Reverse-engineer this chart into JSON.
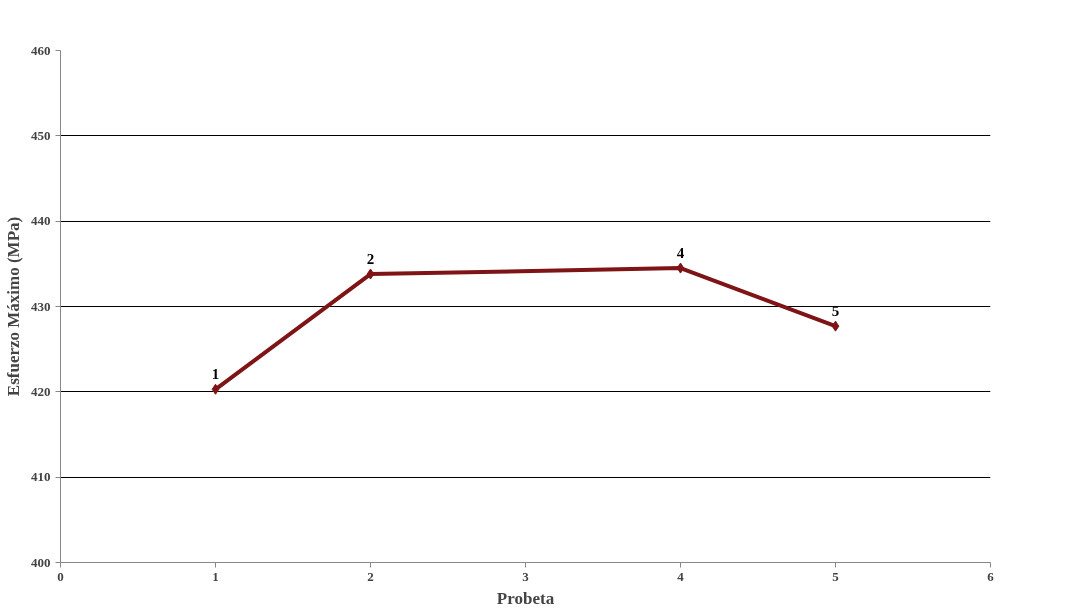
{
  "chart_data": {
    "type": "line",
    "xlabel": "Probeta",
    "ylabel": "Esfuerzo Máximo (MPa)",
    "x": [
      1,
      2,
      4,
      5
    ],
    "series": [
      {
        "color": "#7f1416",
        "values": [
          420.3,
          433.8,
          434.5,
          427.7
        ]
      }
    ],
    "xlim": [
      0,
      6
    ],
    "xticks": [
      0,
      1,
      2,
      3,
      4,
      5,
      6
    ],
    "ylim": [
      400,
      460
    ],
    "yticks": [
      400,
      410,
      420,
      430,
      440,
      450,
      460
    ],
    "grid": "y",
    "marker": "diamond",
    "line_style": "solid",
    "annotations": [
      {
        "text": "1",
        "x": 1,
        "y": 420.3
      },
      {
        "text": "2",
        "x": 2,
        "y": 433.8
      },
      {
        "text": "4",
        "x": 4,
        "y": 434.5
      },
      {
        "text": "5",
        "x": 5,
        "y": 427.7
      }
    ]
  }
}
